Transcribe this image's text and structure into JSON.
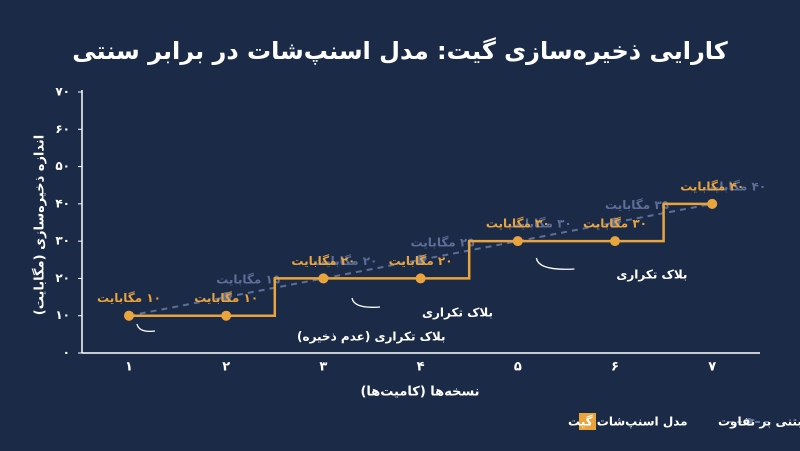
{
  "chart_data": {
    "type": "line",
    "title": "کارایی ذخیره‌سازی گیت: مدل اسنپ‌شات در برابر سنتی",
    "x_label": "نسخه‌ها (کامیت‌ها)",
    "y_label": "اندازه ذخیره‌سازی (مگابایت)",
    "categories": [
      "۱",
      "۲",
      "۳",
      "۴",
      "۵",
      "۶",
      "۷"
    ],
    "ylim": [
      0,
      70
    ],
    "yticks": [
      {
        "value": 0,
        "label": "۰"
      },
      {
        "value": 10,
        "label": "۱۰"
      },
      {
        "value": 20,
        "label": "۲۰"
      },
      {
        "value": 30,
        "label": "۳۰"
      },
      {
        "value": 40,
        "label": "۴۰"
      },
      {
        "value": 50,
        "label": "۵۰"
      },
      {
        "value": 60,
        "label": "۶۰"
      },
      {
        "value": 70,
        "label": "۷۰"
      }
    ],
    "series": [
      {
        "name": "مدل سنتی مبتنی بر تفاوت",
        "color": "#5d6f98",
        "style": "dashed",
        "values": [
          10,
          15,
          20,
          25,
          30,
          35,
          40
        ],
        "value_labels": [
          null,
          "۱۵ مگابایت",
          "۲۰ مگابایت",
          "۲۵ مگابایت",
          "۳۰ مگابایت",
          "۳۵ مگابایت",
          "۴۰ مگابایت"
        ]
      },
      {
        "name": "مدل اسنپ‌شات گیت",
        "color": "#e9a43c",
        "style": "step",
        "values": [
          10,
          10,
          20,
          20,
          30,
          30,
          40
        ],
        "value_labels": [
          "۱۰ مگابایت",
          "۱۰ مگابایت",
          "۲۰ مگابایت",
          "۲۰ مگابایت",
          "۳۰ مگابایت",
          "۳۰ مگابایت",
          "۴۰ مگابایت"
        ]
      }
    ],
    "annotations": [
      "بلاک تکراری (عدم ذخیره)",
      "بلاک تکراری",
      "بلاک تکراری"
    ]
  }
}
